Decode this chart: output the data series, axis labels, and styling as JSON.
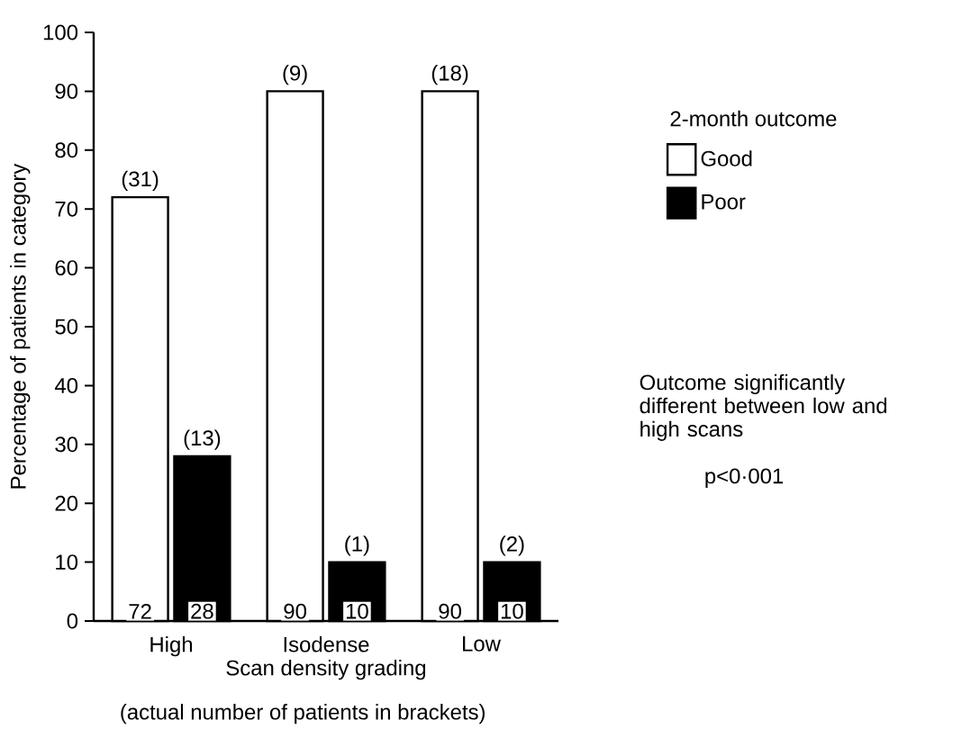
{
  "chart_data": {
    "type": "bar",
    "xlabel": "Scan density grading",
    "ylabel": "Percentage of patients in category",
    "legend_title": "2-month outcome",
    "categories": [
      "High",
      "Isodense",
      "Low"
    ],
    "series": [
      {
        "name": "Good",
        "color": "#ffffff",
        "values": [
          72,
          90,
          90
        ]
      },
      {
        "name": "Poor",
        "color": "#000000",
        "values": [
          28,
          10,
          10
        ]
      }
    ],
    "ylim": [
      0,
      100
    ],
    "yticks": [
      0,
      10,
      20,
      30,
      40,
      50,
      60,
      70,
      80,
      90,
      100
    ],
    "data_labels": true,
    "legend": "right",
    "grid": false,
    "annotations": [
      {
        "text": "(31)",
        "x": "High",
        "y": 72
      },
      {
        "text": "(13)",
        "x": "High",
        "y": 28
      },
      {
        "text": "(9)",
        "x": "Isodense",
        "y": 90
      },
      {
        "text": "(1)",
        "x": "Isodense",
        "y": 10
      },
      {
        "text": "(18)",
        "x": "Low",
        "y": 90
      },
      {
        "text": "(2)",
        "x": "Low",
        "y": 10
      },
      "Outcome significantly different between low and high scans",
      "p<0·001",
      "(actual number of patients in brackets)"
    ]
  }
}
